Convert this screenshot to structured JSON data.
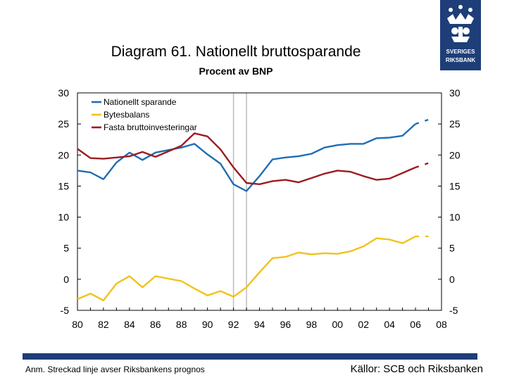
{
  "colors": {
    "blue": "#1f6db5",
    "yellow": "#f2c21b",
    "red": "#9b1c20",
    "grid": "#bdbdbd",
    "brand": "#1d3e78"
  },
  "logo": {
    "line1": "SVERIGES",
    "line2": "RIKSBANK"
  },
  "footer": {
    "note": "Anm. Streckad linje avser Riksbankens prognos",
    "sources": "Källor: SCB och Riksbanken"
  },
  "chart_data": {
    "type": "line",
    "title": "Diagram 61. Nationellt bruttosparande",
    "subtitle": "Procent av BNP",
    "xlim": [
      1980,
      2008
    ],
    "ylim": [
      -5,
      30
    ],
    "x_ticks": [
      1980,
      1982,
      1984,
      1986,
      1988,
      1990,
      1992,
      1994,
      1996,
      1998,
      2000,
      2002,
      2004,
      2006,
      2008
    ],
    "x_tick_labels": [
      "80",
      "82",
      "84",
      "86",
      "88",
      "90",
      "92",
      "94",
      "96",
      "98",
      "00",
      "02",
      "04",
      "06",
      "08"
    ],
    "y_ticks": [
      -5,
      0,
      5,
      10,
      15,
      20,
      25,
      30
    ],
    "y_tick_labels": [
      "-5",
      "0",
      "5",
      "10",
      "15",
      "20",
      "25",
      "30"
    ],
    "vertical_markers": [
      1992,
      1993
    ],
    "legend_position": "top-left",
    "series": [
      {
        "name": "Nationellt sparande",
        "color": "#1f6db5",
        "x": [
          1980,
          1981,
          1982,
          1983,
          1984,
          1985,
          1986,
          1987,
          1988,
          1989,
          1990,
          1991,
          1992,
          1993,
          1994,
          1995,
          1996,
          1997,
          1998,
          1999,
          2000,
          2001,
          2002,
          2003,
          2004,
          2005,
          2006
        ],
        "values": [
          17.5,
          17.2,
          16.1,
          18.8,
          20.4,
          19.2,
          20.4,
          20.8,
          21.2,
          21.8,
          20.1,
          18.6,
          15.3,
          14.2,
          16.6,
          19.3,
          19.6,
          19.8,
          20.2,
          21.2,
          21.6,
          21.8,
          21.8,
          22.7,
          22.8,
          23.1,
          25.0
        ],
        "forecast_x": [
          2006,
          2007
        ],
        "forecast_values": [
          25.0,
          25.7
        ]
      },
      {
        "name": "Bytesbalans",
        "color": "#f2c21b",
        "x": [
          1980,
          1981,
          1982,
          1983,
          1984,
          1985,
          1986,
          1987,
          1988,
          1989,
          1990,
          1991,
          1992,
          1993,
          1994,
          1995,
          1996,
          1997,
          1998,
          1999,
          2000,
          2001,
          2002,
          2003,
          2004,
          2005,
          2006
        ],
        "values": [
          -3.2,
          -2.3,
          -3.4,
          -0.7,
          0.5,
          -1.3,
          0.5,
          0.1,
          -0.3,
          -1.5,
          -2.6,
          -1.9,
          -2.8,
          -1.3,
          1.1,
          3.4,
          3.6,
          4.3,
          4.0,
          4.2,
          4.1,
          4.5,
          5.3,
          6.6,
          6.4,
          5.8,
          6.9
        ],
        "forecast_x": [
          2006,
          2007
        ],
        "forecast_values": [
          6.9,
          6.9
        ]
      },
      {
        "name": "Fasta bruttoinvesteringar",
        "color": "#9b1c20",
        "x": [
          1980,
          1981,
          1982,
          1983,
          1984,
          1985,
          1986,
          1987,
          1988,
          1989,
          1990,
          1991,
          1992,
          1993,
          1994,
          1995,
          1996,
          1997,
          1998,
          1999,
          2000,
          2001,
          2002,
          2003,
          2004,
          2005,
          2006
        ],
        "values": [
          21.0,
          19.5,
          19.4,
          19.6,
          19.8,
          20.5,
          19.7,
          20.6,
          21.5,
          23.5,
          23.0,
          20.9,
          18.0,
          15.5,
          15.3,
          15.8,
          16.0,
          15.6,
          16.3,
          17.0,
          17.5,
          17.3,
          16.6,
          16.0,
          16.2,
          17.1,
          18.0
        ],
        "forecast_x": [
          2006,
          2007
        ],
        "forecast_values": [
          18.0,
          18.7
        ]
      }
    ]
  }
}
